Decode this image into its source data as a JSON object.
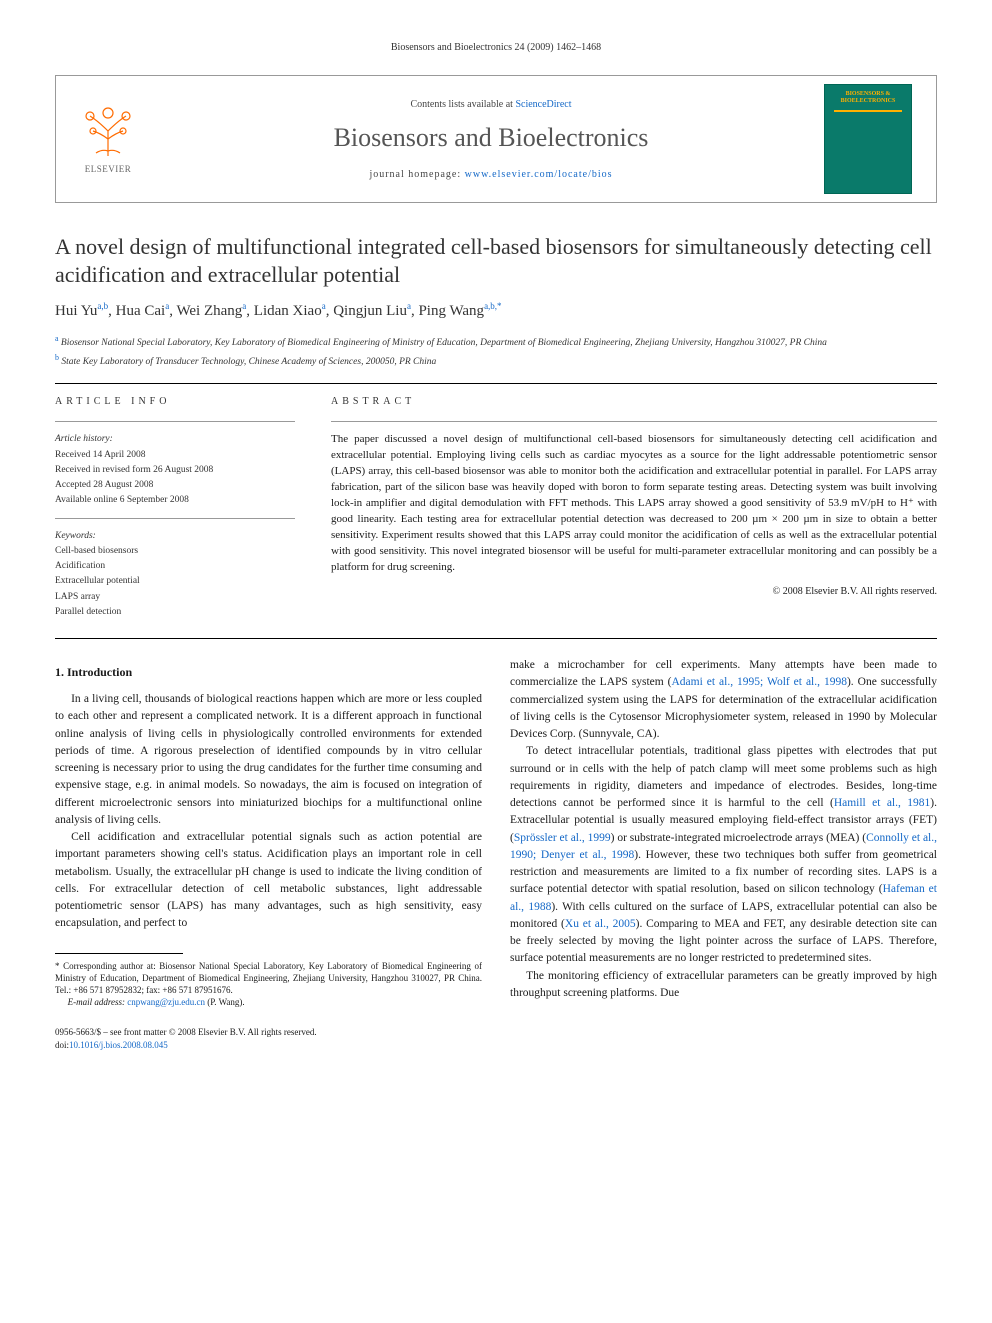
{
  "running_head": "Biosensors and Bioelectronics 24 (2009) 1462–1468",
  "header": {
    "publisher_name": "ELSEVIER",
    "contents_prefix": "Contents lists available at ",
    "contents_link_text": "ScienceDirect",
    "journal_name": "Biosensors and Bioelectronics",
    "homepage_prefix": "journal homepage: ",
    "homepage_url": "www.elsevier.com/locate/bios",
    "thumb_title": "BIOSENSORS & BIOELECTRONICS"
  },
  "title": "A novel design of multifunctional integrated cell-based biosensors for simultaneously detecting cell acidification and extracellular potential",
  "authors": [
    {
      "name": "Hui Yu",
      "sup": "a,b"
    },
    {
      "name": "Hua Cai",
      "sup": "a"
    },
    {
      "name": "Wei Zhang",
      "sup": "a"
    },
    {
      "name": "Lidan Xiao",
      "sup": "a"
    },
    {
      "name": "Qingjun Liu",
      "sup": "a"
    },
    {
      "name": "Ping Wang",
      "sup": "a,b,*"
    }
  ],
  "affiliations": [
    {
      "sup": "a",
      "text": "Biosensor National Special Laboratory, Key Laboratory of Biomedical Engineering of Ministry of Education, Department of Biomedical Engineering, Zhejiang University, Hangzhou 310027, PR China"
    },
    {
      "sup": "b",
      "text": "State Key Laboratory of Transducer Technology, Chinese Academy of Sciences, 200050, PR China"
    }
  ],
  "article_info": {
    "heading": "article info",
    "history_label": "Article history:",
    "history": [
      "Received 14 April 2008",
      "Received in revised form 26 August 2008",
      "Accepted 28 August 2008",
      "Available online 6 September 2008"
    ],
    "keywords_label": "Keywords:",
    "keywords": [
      "Cell-based biosensors",
      "Acidification",
      "Extracellular potential",
      "LAPS array",
      "Parallel detection"
    ]
  },
  "abstract": {
    "heading": "abstract",
    "text": "The paper discussed a novel design of multifunctional cell-based biosensors for simultaneously detecting cell acidification and extracellular potential. Employing living cells such as cardiac myocytes as a source for the light addressable potentiometric sensor (LAPS) array, this cell-based biosensor was able to monitor both the acidification and extracellular potential in parallel. For LAPS array fabrication, part of the silicon base was heavily doped with boron to form separate testing areas. Detecting system was built involving lock-in amplifier and digital demodulation with FFT methods. This LAPS array showed a good sensitivity of 53.9 mV/pH to H⁺ with good linearity. Each testing area for extracellular potential detection was decreased to 200 µm × 200 µm in size to obtain a better sensitivity. Experiment results showed that this LAPS array could monitor the acidification of cells as well as the extracellular potential with good sensitivity. This novel integrated biosensor will be useful for multi-parameter extracellular monitoring and can possibly be a platform for drug screening.",
    "copyright": "© 2008 Elsevier B.V. All rights reserved."
  },
  "body": {
    "section1_head": "1. Introduction",
    "p1": "In a living cell, thousands of biological reactions happen which are more or less coupled to each other and represent a complicated network. It is a different approach in functional online analysis of living cells in physiologically controlled environments for extended periods of time. A rigorous preselection of identified compounds by in vitro cellular screening is necessary prior to using the drug candidates for the further time consuming and expensive stage, e.g. in animal models. So nowadays, the aim is focused on integration of different microelectronic sensors into miniaturized biochips for a multifunctional online analysis of living cells.",
    "p2": "Cell acidification and extracellular potential signals such as action potential are important parameters showing cell's status. Acidification plays an important role in cell metabolism. Usually, the extracellular pH change is used to indicate the living condition of cells. For extracellular detection of cell metabolic substances, light addressable potentiometric sensor (LAPS) has many advantages, such as high sensitivity, easy encapsulation, and perfect to",
    "p3_pre": "make a microchamber for cell experiments. Many attempts have been made to commercialize the LAPS system (",
    "p3_ref1": "Adami et al., 1995; Wolf et al., 1998",
    "p3_post": "). One successfully commercialized system using the LAPS for determination of the extracellular acidification of living cells is the Cytosensor Microphysiometer system, released in 1990 by Molecular Devices Corp. (Sunnyvale, CA).",
    "p4_pre": "To detect intracellular potentials, traditional glass pipettes with electrodes that put surround or in cells with the help of patch clamp will meet some problems such as high requirements in rigidity, diameters and impedance of electrodes. Besides, long-time detections cannot be performed since it is harmful to the cell (",
    "p4_ref1": "Hamill et al., 1981",
    "p4_mid1": "). Extracellular potential is usually measured employing field-effect transistor arrays (FET) (",
    "p4_ref2": "Sprössler et al., 1999",
    "p4_mid2": ") or substrate-integrated microelectrode arrays (MEA) (",
    "p4_ref3": "Connolly et al., 1990; Denyer et al., 1998",
    "p4_mid3": "). However, these two techniques both suffer from geometrical restriction and measurements are limited to a fix number of recording sites. LAPS is a surface potential detector with spatial resolution, based on silicon technology (",
    "p4_ref4": "Hafeman et al., 1988",
    "p4_mid4": "). With cells cultured on the surface of LAPS, extracellular potential can also be monitored (",
    "p4_ref5": "Xu et al., 2005",
    "p4_post": "). Comparing to MEA and FET, any desirable detection site can be freely selected by moving the light pointer across the surface of LAPS. Therefore, surface potential measurements are no longer restricted to predetermined sites.",
    "p5": "The monitoring efficiency of extracellular parameters can be greatly improved by high throughput screening platforms. Due"
  },
  "footnote": {
    "corr_label": "* Corresponding author at: ",
    "corr_text": "Biosensor National Special Laboratory, Key Laboratory of Biomedical Engineering of Ministry of Education, Department of Biomedical Engineering, Zhejiang University, Hangzhou 310027, PR China. Tel.: +86 571 87952832; fax: +86 571 87951676.",
    "email_label": "E-mail address: ",
    "email": "cnpwang@zju.edu.cn",
    "email_suffix": " (P. Wang)."
  },
  "footer": {
    "issn_line": "0956-5663/$ – see front matter © 2008 Elsevier B.V. All rights reserved.",
    "doi_prefix": "doi:",
    "doi": "10.1016/j.bios.2008.08.045"
  },
  "colors": {
    "link": "#1468c7",
    "elsevier_orange": "#ff6b00",
    "thumb_bg": "#0a7a6a",
    "thumb_accent": "#ffb000"
  }
}
